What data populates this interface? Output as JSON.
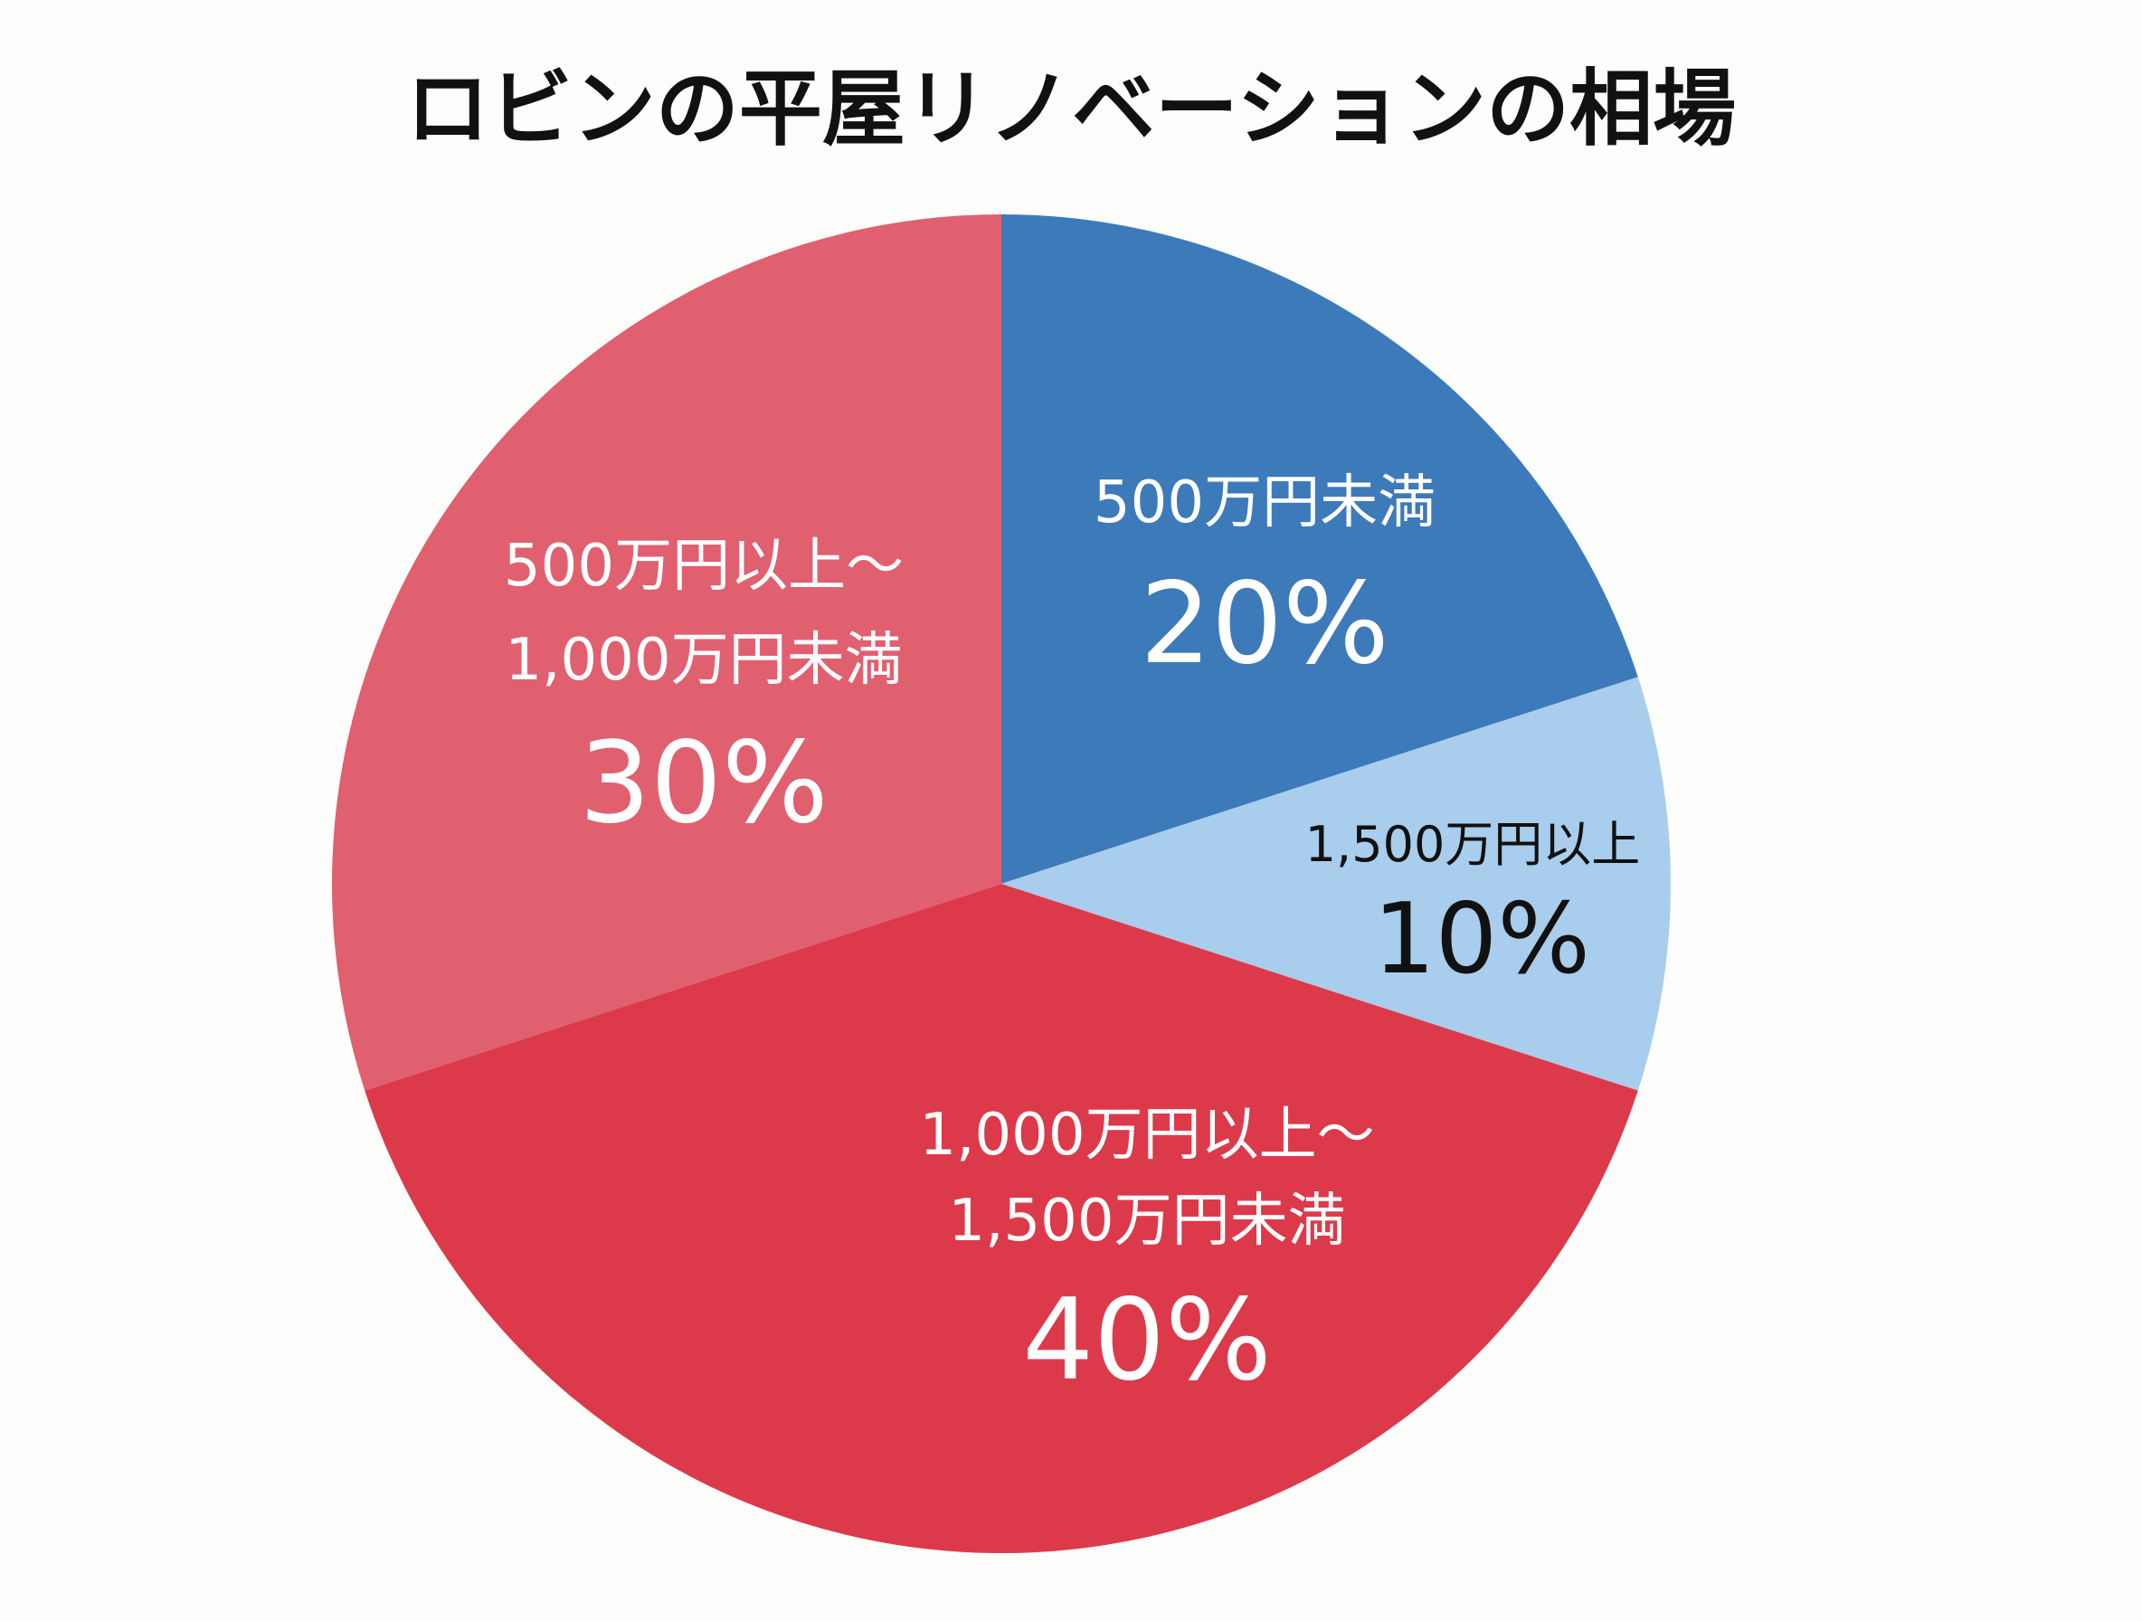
{
  "chart_data": {
    "type": "pie",
    "title": "ロビンの平屋リノベーションの相場",
    "start": "top",
    "direction": "clockwise",
    "slices": [
      {
        "label_lines": [
          "500万円未満"
        ],
        "value": 20,
        "value_label": "20%",
        "color": "#3d7aba",
        "text_color": "#ffffff"
      },
      {
        "label_lines": [
          "1,500万円以上"
        ],
        "value": 10,
        "value_label": "10%",
        "color": "#a9cdec",
        "text_color": "#111111"
      },
      {
        "label_lines": [
          "1,000万円以上～",
          "1,500万円未満"
        ],
        "value": 40,
        "value_label": "40%",
        "color": "#dc3a4b",
        "text_color": "#ffffff"
      },
      {
        "label_lines": [
          "500万円以上～",
          "1,000万円未満"
        ],
        "value": 30,
        "value_label": "30%",
        "color": "#e06070",
        "text_color": "#ffffff"
      }
    ]
  }
}
